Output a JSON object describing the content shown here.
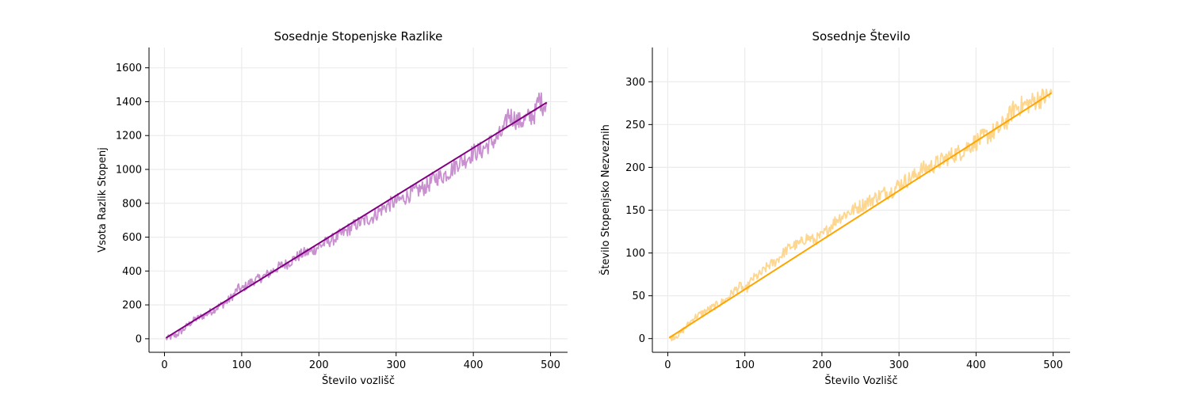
{
  "chart_data": [
    {
      "type": "line",
      "title": "Sosednje Stopenjske Razlike",
      "xlabel": "Število vozlišč",
      "ylabel": "Vsota Razlik Stopenj",
      "xlim": [
        -20,
        522
      ],
      "ylim": [
        -80,
        1720
      ],
      "xticks": [
        0,
        100,
        200,
        300,
        400,
        500
      ],
      "yticks": [
        0,
        200,
        400,
        600,
        800,
        1000,
        1200,
        1400,
        1600
      ],
      "grid": true,
      "series": [
        {
          "style": "noisy",
          "color": "#c990d0",
          "x": [
            2,
            15,
            25,
            30,
            40,
            50,
            60,
            70,
            80,
            90,
            95,
            100,
            110,
            120,
            130,
            140,
            150,
            160,
            170,
            180,
            190,
            200,
            210,
            220,
            230,
            240,
            250,
            260,
            270,
            280,
            290,
            300,
            310,
            320,
            330,
            340,
            350,
            360,
            370,
            380,
            390,
            400,
            410,
            420,
            430,
            440,
            445,
            450,
            460,
            470,
            480,
            485,
            490,
            495
          ],
          "y": [
            0,
            20,
            55,
            80,
            115,
            135,
            160,
            190,
            215,
            260,
            300,
            290,
            330,
            350,
            370,
            400,
            430,
            445,
            480,
            505,
            515,
            545,
            570,
            590,
            620,
            650,
            680,
            700,
            720,
            760,
            790,
            810,
            830,
            860,
            880,
            900,
            950,
            960,
            990,
            1040,
            1060,
            1100,
            1110,
            1150,
            1180,
            1230,
            1330,
            1310,
            1280,
            1300,
            1330,
            1420,
            1380,
            1400
          ]
        },
        {
          "style": "trend",
          "color": "#800080",
          "x": [
            2,
            495
          ],
          "y": [
            5,
            1395
          ]
        }
      ]
    },
    {
      "type": "line",
      "title": "Sosednje Število",
      "xlabel": "Število Vozlišč",
      "ylabel": "Število Stopenjsko Nezveznih",
      "xlim": [
        -20,
        522
      ],
      "ylim": [
        -16,
        340
      ],
      "xticks": [
        0,
        100,
        200,
        300,
        400,
        500
      ],
      "yticks": [
        0,
        50,
        100,
        150,
        200,
        250,
        300
      ],
      "grid": true,
      "series": [
        {
          "style": "noisy",
          "color": "#fdd68f",
          "x": [
            2,
            15,
            25,
            35,
            45,
            55,
            65,
            75,
            85,
            95,
            100,
            110,
            120,
            130,
            140,
            150,
            160,
            170,
            180,
            190,
            200,
            210,
            220,
            230,
            240,
            250,
            260,
            270,
            280,
            290,
            300,
            310,
            320,
            330,
            340,
            350,
            360,
            370,
            380,
            390,
            400,
            410,
            420,
            430,
            440,
            450,
            460,
            470,
            480,
            490,
            498
          ],
          "y": [
            0,
            5,
            15,
            25,
            30,
            35,
            40,
            45,
            55,
            62,
            55,
            70,
            75,
            85,
            90,
            100,
            108,
            110,
            118,
            115,
            120,
            130,
            140,
            145,
            150,
            155,
            160,
            165,
            170,
            172,
            180,
            185,
            190,
            198,
            200,
            205,
            210,
            215,
            218,
            225,
            230,
            235,
            240,
            245,
            255,
            270,
            272,
            275,
            280,
            282,
            285
          ]
        },
        {
          "style": "trend",
          "color": "#ffa500",
          "x": [
            2,
            498
          ],
          "y": [
            1,
            287
          ]
        }
      ]
    }
  ]
}
